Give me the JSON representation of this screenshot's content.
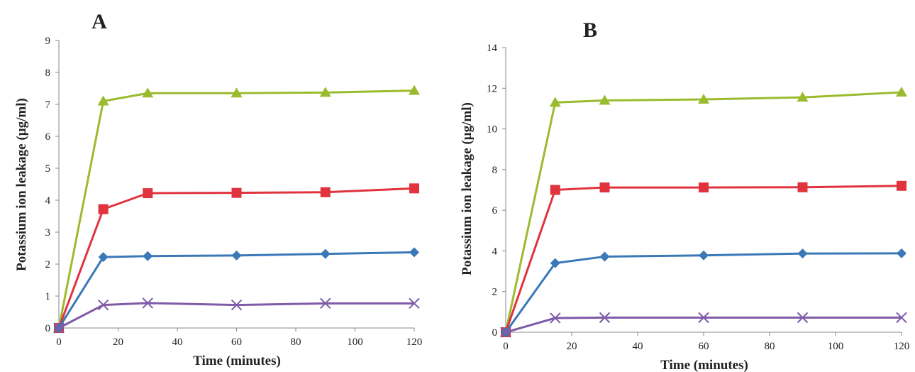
{
  "chart_data": [
    {
      "type": "line",
      "title": "A",
      "xlabel": "Time (minutes)",
      "ylabel": "Potassium ion leakage (µg/ml)",
      "xlim": [
        0,
        120
      ],
      "ylim": [
        0,
        9
      ],
      "xticks": [
        0,
        20,
        40,
        60,
        80,
        100,
        120
      ],
      "yticks": [
        0,
        1,
        2,
        3,
        4,
        5,
        6,
        7,
        8,
        9
      ],
      "grid": false,
      "legend": "none",
      "x": [
        0,
        15,
        30,
        60,
        90,
        120
      ],
      "series": [
        {
          "color": "#9bbb2e",
          "marker": "triangle",
          "values": [
            0,
            7.1,
            7.35,
            7.35,
            7.37,
            7.43
          ]
        },
        {
          "color": "#e0333d",
          "marker": "square",
          "values": [
            0,
            3.72,
            4.22,
            4.23,
            4.25,
            4.37
          ]
        },
        {
          "color": "#3a78b8",
          "marker": "diamond",
          "values": [
            0,
            2.22,
            2.25,
            2.27,
            2.32,
            2.37
          ]
        },
        {
          "color": "#7f5ba8",
          "marker": "x",
          "values": [
            0,
            0.72,
            0.78,
            0.72,
            0.77,
            0.77
          ]
        }
      ]
    },
    {
      "type": "line",
      "title": "B",
      "xlabel": "Time (minutes)",
      "ylabel": "Potassium ion leakage (µg/ml)",
      "xlim": [
        0,
        120
      ],
      "ylim": [
        0,
        14
      ],
      "xticks": [
        0,
        20,
        40,
        60,
        80,
        100,
        120
      ],
      "yticks": [
        0,
        2,
        4,
        6,
        8,
        10,
        12,
        14
      ],
      "grid": false,
      "legend": "none",
      "x": [
        0,
        15,
        30,
        60,
        90,
        120
      ],
      "series": [
        {
          "color": "#9bbb2e",
          "marker": "triangle",
          "values": [
            0,
            11.3,
            11.4,
            11.45,
            11.55,
            11.8
          ]
        },
        {
          "color": "#e0333d",
          "marker": "square",
          "values": [
            0,
            7.0,
            7.12,
            7.12,
            7.13,
            7.2
          ]
        },
        {
          "color": "#3a78b8",
          "marker": "diamond",
          "values": [
            0,
            3.4,
            3.72,
            3.78,
            3.87,
            3.88
          ]
        },
        {
          "color": "#7f5ba8",
          "marker": "x",
          "values": [
            0,
            0.7,
            0.72,
            0.72,
            0.72,
            0.72
          ]
        }
      ]
    }
  ]
}
